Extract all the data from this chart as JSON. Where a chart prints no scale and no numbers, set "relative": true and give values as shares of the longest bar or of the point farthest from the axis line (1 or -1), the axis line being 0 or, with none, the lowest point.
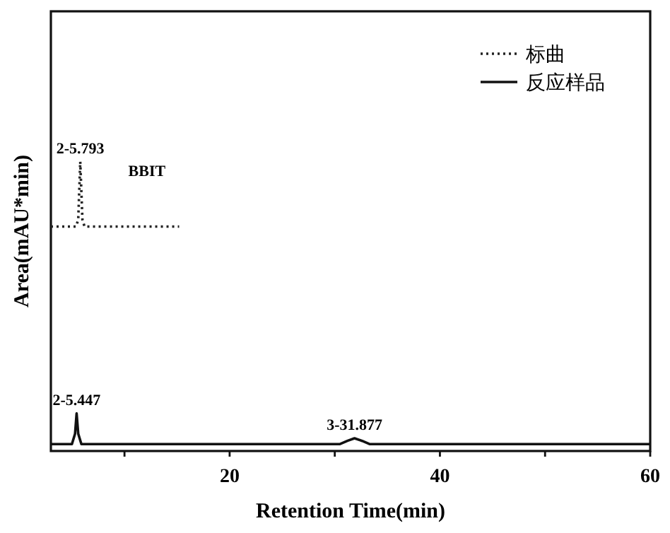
{
  "chart_data": {
    "type": "line",
    "relative": true,
    "xlabel": "Retention Time(min)",
    "ylabel": "Area(mAU*min)",
    "xlim": [
      3,
      60
    ],
    "xticks": [
      {
        "value": 10,
        "label": null
      },
      20,
      {
        "value": 30,
        "label": null
      },
      40,
      {
        "value": 50,
        "label": null
      },
      60
    ],
    "grid": false,
    "legend": "top right",
    "marker": "none",
    "series": [
      {
        "name": "标曲",
        "color": "#222222",
        "line_style": "dotted",
        "x": [
          3,
          5.4,
          5.6,
          5.793,
          6.0,
          6.2,
          15.2
        ],
        "values": [
          0.776,
          0.776,
          0.8,
          1,
          0.8,
          0.776,
          0.776
        ]
      },
      {
        "name": "反应样品",
        "color": "#111111",
        "line_style": "solid",
        "x": [
          3,
          5.0,
          5.3,
          5.447,
          5.6,
          5.9,
          30.5,
          31.2,
          31.877,
          32.6,
          33.3,
          60
        ],
        "values": [
          0.024,
          0.024,
          0.06,
          0.13,
          0.06,
          0.024,
          0.024,
          0.035,
          0.044,
          0.035,
          0.024,
          0.024
        ]
      }
    ],
    "annotations": [
      {
        "text": "2-5.793",
        "x": 5.793,
        "y": 1
      },
      "BBIT",
      {
        "text": "2-5.447",
        "x": 5.447,
        "y": 0.13
      },
      {
        "text": "3-31.877",
        "x": 31.877,
        "y": 0.044
      }
    ]
  }
}
